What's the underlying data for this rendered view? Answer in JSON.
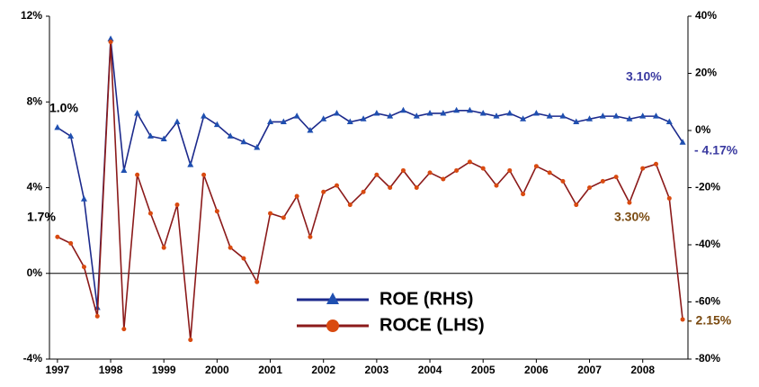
{
  "chart_data": {
    "type": "line",
    "x": [
      1997,
      1997.25,
      1997.5,
      1997.75,
      1998,
      1998.25,
      1998.5,
      1998.75,
      1999,
      1999.25,
      1999.5,
      1999.75,
      2000,
      2000.25,
      2000.5,
      2000.75,
      2001,
      2001.25,
      2001.5,
      2001.75,
      2002,
      2002.25,
      2002.5,
      2002.75,
      2003,
      2003.25,
      2003.5,
      2003.75,
      2004,
      2004.25,
      2004.5,
      2004.75,
      2005,
      2005.25,
      2005.5,
      2005.75,
      2006,
      2006.25,
      2006.5,
      2006.75,
      2007,
      2007.25,
      2007.5,
      2007.75,
      2008,
      2008.25,
      2008.5,
      2008.75
    ],
    "xlim": [
      1996.85,
      2008.85
    ],
    "xticks": [
      1997,
      1998,
      1999,
      2000,
      2001,
      2002,
      2003,
      2004,
      2005,
      2006,
      2007,
      2008
    ],
    "ylim": [
      -4,
      12
    ],
    "yticks": [
      {
        "value": -4,
        "label": "-4%"
      },
      {
        "value": 0,
        "label": "0%"
      },
      {
        "value": 4,
        "label": "4%"
      },
      {
        "value": 8,
        "label": "8%"
      },
      {
        "value": 12,
        "label": "12%"
      }
    ],
    "y2lim": [
      -80,
      40
    ],
    "y2ticks": [
      {
        "value": -80,
        "label": "-80%"
      },
      {
        "value": -60,
        "label": "-60%"
      },
      {
        "value": -40,
        "label": "-40%"
      },
      {
        "value": -20,
        "label": "-20%"
      },
      {
        "value": 0,
        "label": "0%"
      },
      {
        "value": 20,
        "label": "20%"
      },
      {
        "value": 40,
        "label": "40%"
      }
    ],
    "series": [
      {
        "name": "ROE (RHS)",
        "color": "#1c2a8c",
        "marker_color": "#1f4fb0",
        "axis": "y2",
        "values": [
          1.0,
          -2,
          -24,
          -62,
          32,
          -14,
          6,
          -2,
          -3,
          3,
          -12,
          5,
          2,
          -2,
          -4,
          -6,
          3,
          3,
          5,
          0,
          4,
          6,
          3,
          4,
          6,
          5,
          7,
          5,
          6,
          6,
          7,
          7,
          6,
          5,
          6,
          4,
          6,
          5,
          5,
          3,
          4,
          5,
          5,
          4,
          5,
          5,
          3,
          -4.17
        ]
      },
      {
        "name": "ROCE (LHS)",
        "color": "#8b1a1a",
        "marker_color": "#d94a10",
        "axis": "y",
        "values": [
          1.7,
          1.4,
          0.3,
          -2.0,
          10.8,
          -2.6,
          4.6,
          2.8,
          1.2,
          3.2,
          -3.1,
          4.6,
          2.9,
          1.2,
          0.7,
          -0.4,
          2.8,
          2.6,
          3.6,
          1.7,
          3.8,
          4.1,
          3.2,
          3.8,
          4.6,
          4.0,
          4.8,
          4.0,
          4.7,
          4.4,
          4.8,
          5.2,
          4.9,
          4.1,
          4.8,
          3.7,
          5.0,
          4.7,
          4.3,
          3.2,
          4.0,
          4.3,
          4.5,
          3.3,
          4.9,
          5.1,
          3.5,
          -2.15
        ]
      }
    ],
    "annotations": [
      {
        "text": "1.0%",
        "color": "#000000"
      },
      {
        "text": "1.7%",
        "color": "#000000"
      },
      {
        "text": "3.10%",
        "color": "#3a3aa0"
      },
      {
        "text": "- 4.17%",
        "color": "#3a3aa0"
      },
      {
        "text": "3.30%",
        "color": "#7a4a10"
      },
      {
        "text": "- 2.15%",
        "color": "#7a4a10"
      }
    ]
  }
}
